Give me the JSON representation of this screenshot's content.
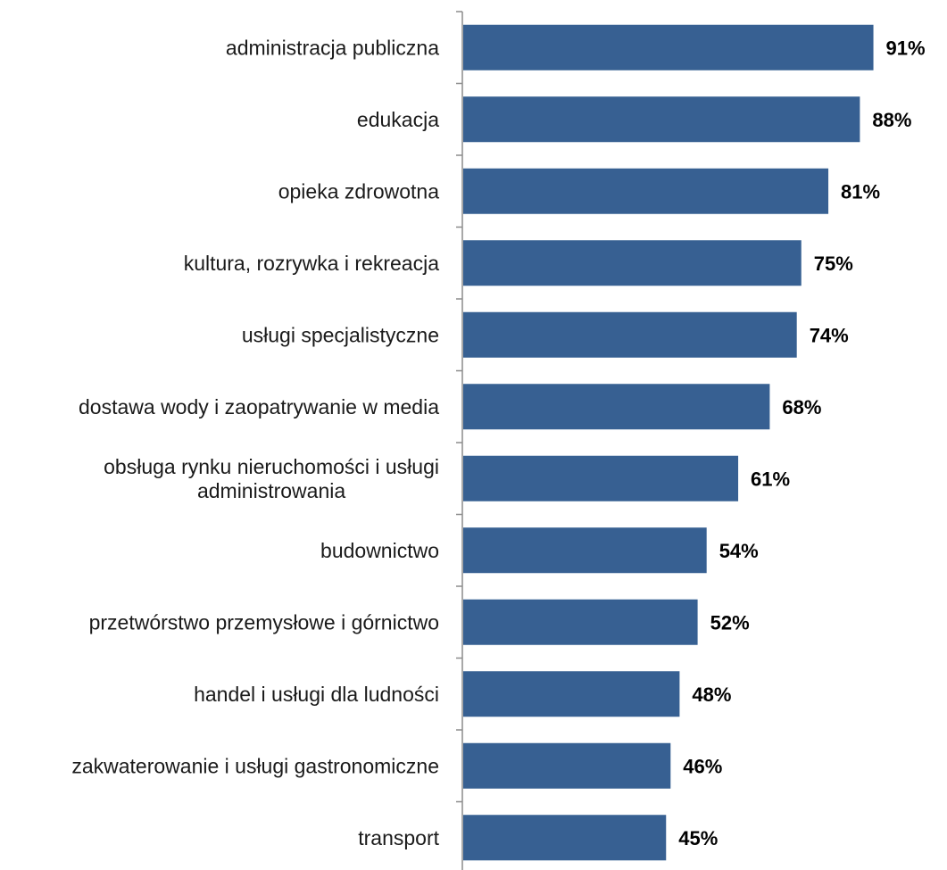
{
  "chart_data": {
    "type": "bar",
    "orientation": "horizontal",
    "categories": [
      [
        "administracja publiczna"
      ],
      [
        "edukacja"
      ],
      [
        "opieka zdrowotna"
      ],
      [
        "kultura, rozrywka i rekreacja"
      ],
      [
        "usługi specjalistyczne"
      ],
      [
        "dostawa wody i zaopatrywanie w media"
      ],
      [
        "obsługa rynku nieruchomości i usługi",
        "administrowania"
      ],
      [
        "budownictwo"
      ],
      [
        "przetwórstwo przemysłowe i górnictwo"
      ],
      [
        "handel i usługi dla ludności"
      ],
      [
        "zakwaterowanie i usługi gastronomiczne"
      ],
      [
        "transport"
      ]
    ],
    "values": [
      91,
      88,
      81,
      75,
      74,
      68,
      61,
      54,
      52,
      48,
      46,
      45
    ],
    "value_labels": [
      "91%",
      "88%",
      "81%",
      "75%",
      "74%",
      "68%",
      "61%",
      "54%",
      "52%",
      "48%",
      "46%",
      "45%"
    ],
    "xlim": [
      0,
      100
    ],
    "grid": false,
    "legend": "none",
    "bar_color": "#376092"
  }
}
